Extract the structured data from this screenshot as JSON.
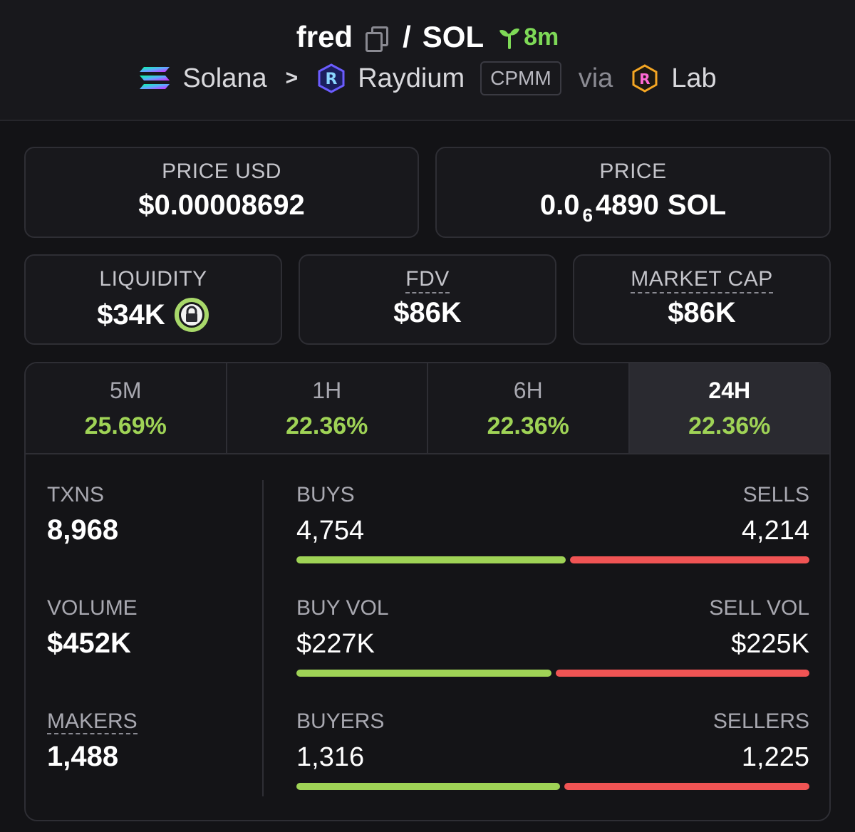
{
  "header": {
    "token": "fred",
    "slash": "/",
    "quote": "SOL",
    "age": "8m",
    "chain": "Solana",
    "dex": "Raydium",
    "pool_type": "CPMM",
    "via": "via",
    "launchpad": "Lab"
  },
  "price_usd": {
    "label": "PRICE USD",
    "value": "$0.00008692"
  },
  "price": {
    "label": "PRICE",
    "prefix": "0.0",
    "zeros": "6",
    "digits": "4890",
    "unit": "SOL"
  },
  "liquidity": {
    "label": "LIQUIDITY",
    "value": "$34K"
  },
  "fdv": {
    "label": "FDV",
    "value": "$86K"
  },
  "market_cap": {
    "label": "MARKET CAP",
    "value": "$86K"
  },
  "tabs": [
    {
      "label": "5M",
      "value": "25.69%"
    },
    {
      "label": "1H",
      "value": "22.36%"
    },
    {
      "label": "6H",
      "value": "22.36%"
    },
    {
      "label": "24H",
      "value": "22.36%",
      "active": true
    }
  ],
  "stats": {
    "txns": {
      "label": "TXNS",
      "value": "8,968"
    },
    "volume": {
      "label": "VOLUME",
      "value": "$452K"
    },
    "makers": {
      "label": "MAKERS",
      "value": "1,488"
    },
    "buys": {
      "label": "BUYS",
      "value": "4,754",
      "sell_label": "SELLS",
      "sell_value": "4,214",
      "buy_fraction": 0.53
    },
    "buy_vol": {
      "label": "BUY VOL",
      "value": "$227K",
      "sell_label": "SELL VOL",
      "sell_value": "$225K",
      "buy_fraction": 0.502
    },
    "buyers": {
      "label": "BUYERS",
      "value": "1,316",
      "sell_label": "SELLERS",
      "sell_value": "1,225",
      "buy_fraction": 0.518
    }
  },
  "colors": {
    "accent_green": "#9fd356",
    "sell_red": "#f05454",
    "age_green": "#7ed957"
  }
}
